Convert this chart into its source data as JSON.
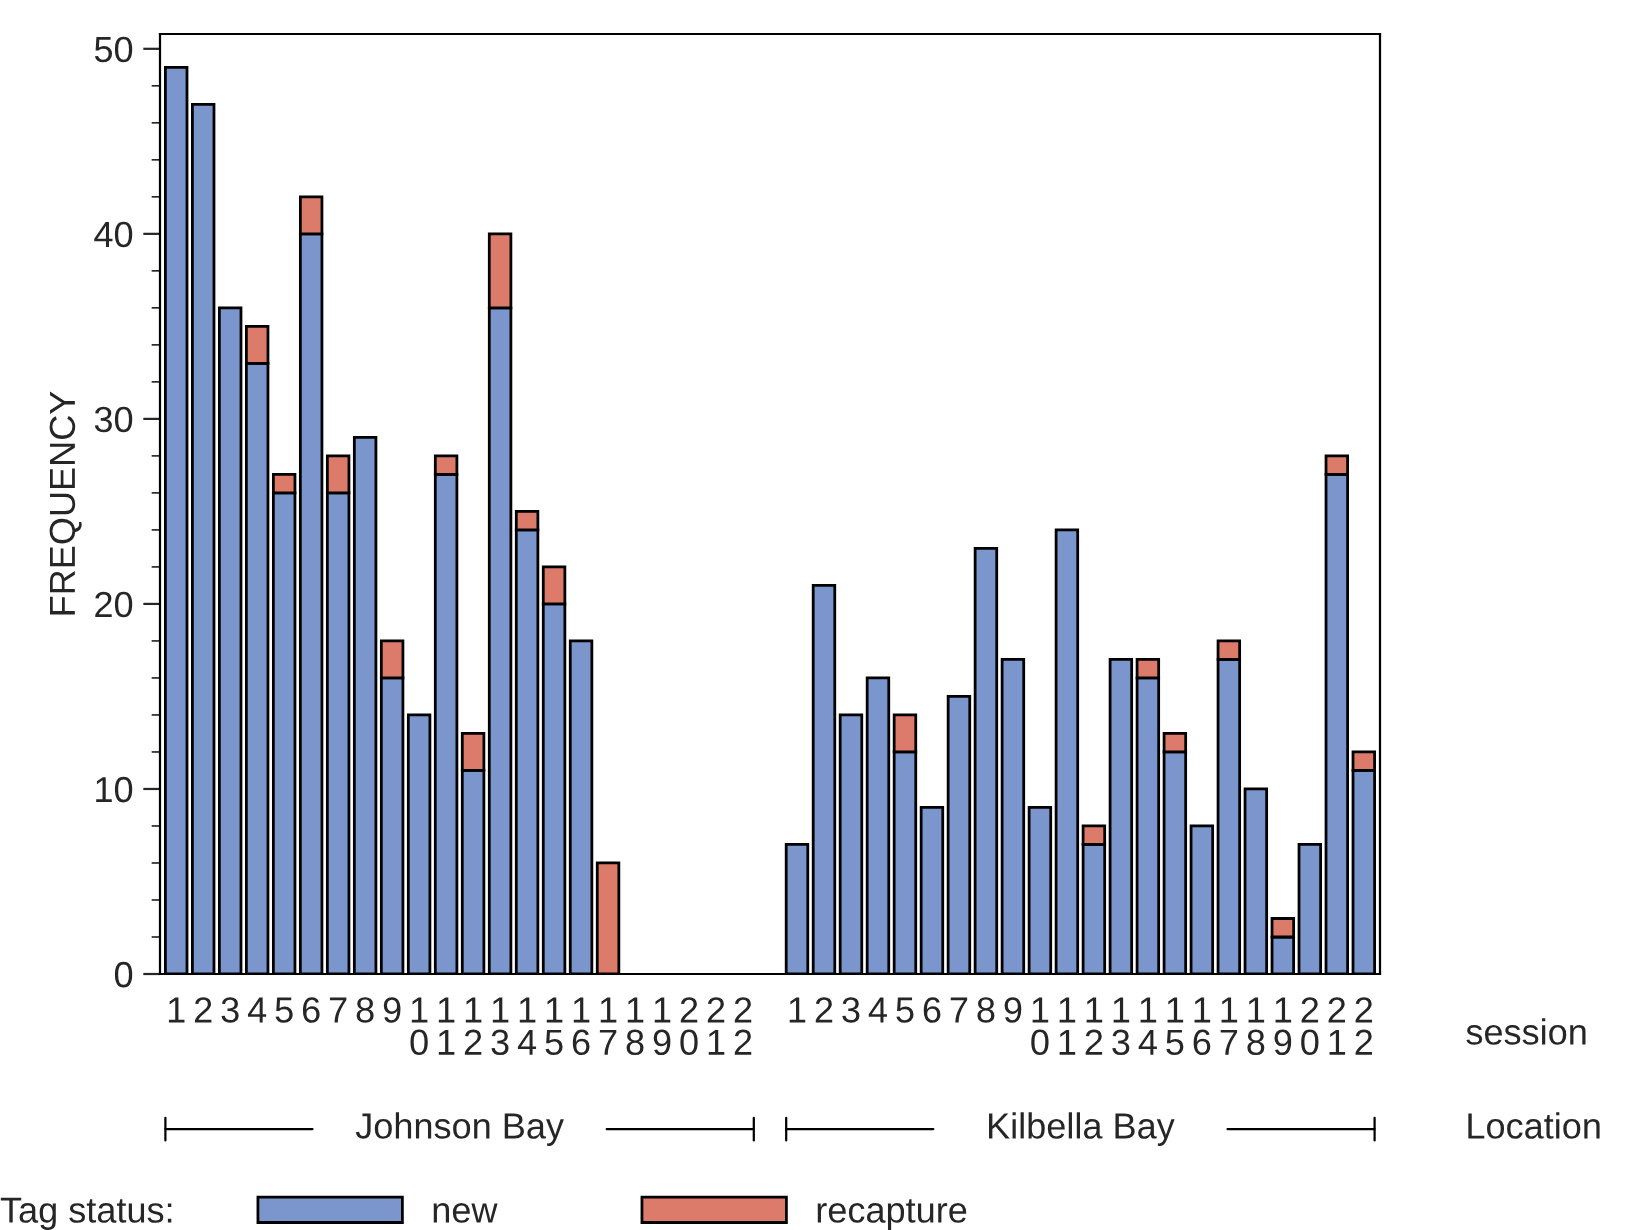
{
  "chart_data": {
    "type": "bar",
    "stacked": true,
    "ylabel": "FREQUENCY",
    "xlabel": "session",
    "legend_title": "Tag status:",
    "legend": "bottom",
    "annotations": [
      "Johnson Bay",
      "Kilbella Bay",
      "Location"
    ],
    "categories": [
      "1",
      "2",
      "3",
      "4",
      "5",
      "6",
      "7",
      "8",
      "9",
      "10",
      "11",
      "12",
      "13",
      "14",
      "15",
      "16",
      "17",
      "18",
      "19",
      "20",
      "21",
      "22",
      "1",
      "2",
      "3",
      "4",
      "5",
      "6",
      "7",
      "8",
      "9",
      "10",
      "11",
      "12",
      "13",
      "14",
      "15",
      "16",
      "17",
      "18",
      "19",
      "20",
      "21",
      "22"
    ],
    "ylim": [
      0,
      50.8
    ],
    "yticks": [
      0,
      10,
      20,
      30,
      40,
      50
    ],
    "grid": false,
    "series": [
      {
        "name": "new",
        "color": "#7a96cc",
        "values": [
          49,
          47,
          36,
          33,
          26,
          40,
          26,
          29,
          16,
          14,
          27,
          11,
          36,
          24,
          20,
          18,
          0,
          null,
          null,
          null,
          null,
          null,
          7,
          21,
          14,
          16,
          12,
          9,
          15,
          23,
          17,
          9,
          24,
          7,
          17,
          16,
          12,
          8,
          17,
          10,
          2,
          7,
          27,
          11
        ]
      },
      {
        "name": "recapture",
        "color": "#dd7b6a",
        "values": [
          0,
          0,
          0,
          2,
          1,
          2,
          2,
          0,
          2,
          0,
          1,
          2,
          4,
          1,
          2,
          0,
          6,
          null,
          null,
          null,
          null,
          null,
          0,
          0,
          0,
          0,
          2,
          0,
          0,
          0,
          0,
          0,
          0,
          1,
          0,
          1,
          1,
          0,
          1,
          0,
          1,
          0,
          1,
          1
        ]
      }
    ]
  }
}
